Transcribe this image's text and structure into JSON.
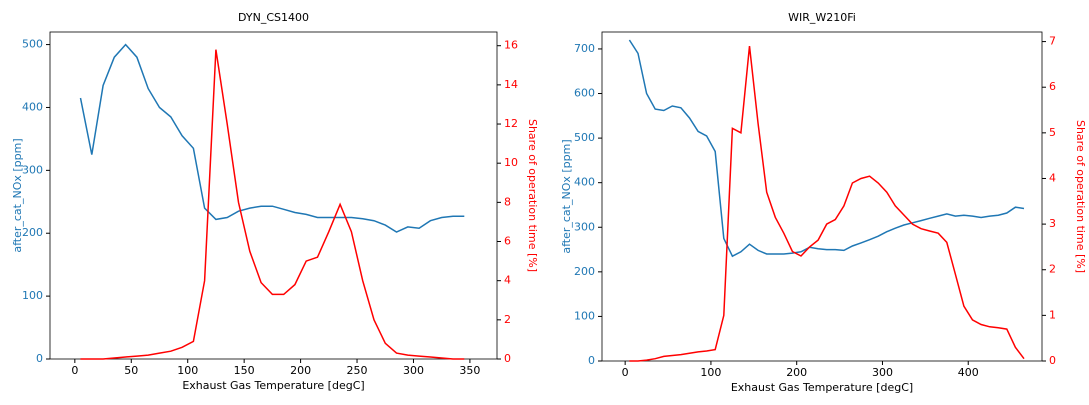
{
  "chart_data": [
    {
      "type": "line",
      "title": "DYN_CS1400",
      "xlabel": "Exhaust Gas Temperature [degC]",
      "ylabel": "after_cat_NOx [ppm]",
      "y2label": "Share of operation time [%]",
      "x": [
        5,
        15,
        25,
        35,
        45,
        55,
        65,
        75,
        85,
        95,
        105,
        115,
        125,
        135,
        145,
        155,
        165,
        175,
        185,
        195,
        205,
        215,
        225,
        235,
        245,
        255,
        265,
        275,
        285,
        295,
        305,
        315,
        325,
        335,
        345
      ],
      "series": [
        {
          "color": "#1f77b4",
          "axis": "y",
          "values": [
            415,
            325,
            435,
            480,
            500,
            480,
            430,
            400,
            385,
            355,
            335,
            240,
            222,
            225,
            235,
            240,
            243,
            243,
            238,
            233,
            230,
            225,
            225,
            225,
            225,
            223,
            220,
            213,
            202,
            210,
            208,
            220,
            225,
            227,
            227
          ]
        },
        {
          "color": "#ff0000",
          "axis": "y2",
          "values": [
            0,
            0,
            0,
            0.05,
            0.1,
            0.15,
            0.2,
            0.3,
            0.4,
            0.6,
            0.9,
            4,
            15.8,
            12,
            8,
            5.5,
            3.9,
            3.3,
            3.3,
            3.8,
            5,
            5.2,
            6.5,
            7.9,
            6.5,
            4,
            2,
            0.8,
            0.3,
            0.2,
            0.15,
            0.1,
            0.05,
            0,
            0
          ]
        }
      ],
      "xlim": [
        -22,
        374
      ],
      "ylim": [
        0,
        520
      ],
      "y2lim": [
        0,
        16.7
      ],
      "xticks": [
        0,
        50,
        100,
        150,
        200,
        250,
        300,
        350
      ],
      "yticks": [
        0,
        100,
        200,
        300,
        400,
        500
      ],
      "y2ticks": [
        0,
        2,
        4,
        6,
        8,
        10,
        12,
        14,
        16
      ]
    },
    {
      "type": "line",
      "title": "WIR_W210Fi",
      "xlabel": "Exhaust Gas Temperature [degC]",
      "ylabel": "after_cat_NOx [ppm]",
      "y2label": "Share of operation time [%]",
      "x": [
        5,
        15,
        25,
        35,
        45,
        55,
        65,
        75,
        85,
        95,
        105,
        115,
        125,
        135,
        145,
        155,
        165,
        175,
        185,
        195,
        205,
        215,
        225,
        235,
        245,
        255,
        265,
        275,
        285,
        295,
        305,
        315,
        325,
        335,
        345,
        355,
        365,
        375,
        385,
        395,
        405,
        415,
        425,
        435,
        445,
        455,
        465
      ],
      "series": [
        {
          "color": "#1f77b4",
          "axis": "y",
          "values": [
            720,
            690,
            600,
            565,
            562,
            572,
            568,
            545,
            515,
            505,
            470,
            275,
            235,
            245,
            262,
            248,
            240,
            240,
            240,
            242,
            245,
            255,
            252,
            250,
            250,
            248,
            258,
            265,
            272,
            280,
            290,
            298,
            305,
            310,
            315,
            320,
            325,
            330,
            325,
            327,
            325,
            322,
            325,
            327,
            332,
            345,
            342
          ]
        },
        {
          "color": "#ff0000",
          "axis": "y2",
          "values": [
            0,
            0,
            0.02,
            0.05,
            0.1,
            0.12,
            0.14,
            0.17,
            0.2,
            0.22,
            0.25,
            1,
            5.1,
            5,
            6.9,
            5.2,
            3.7,
            3.15,
            2.8,
            2.4,
            2.3,
            2.5,
            2.65,
            3,
            3.1,
            3.4,
            3.9,
            4,
            4.05,
            3.9,
            3.7,
            3.4,
            3.2,
            3,
            2.9,
            2.85,
            2.8,
            2.6,
            1.9,
            1.2,
            0.9,
            0.8,
            0.75,
            0.73,
            0.7,
            0.3,
            0.05
          ]
        }
      ],
      "xlim": [
        -27,
        486
      ],
      "ylim": [
        0,
        738
      ],
      "y2lim": [
        0,
        7.21
      ],
      "xticks": [
        0,
        100,
        200,
        300,
        400
      ],
      "yticks": [
        0,
        100,
        200,
        300,
        400,
        500,
        600,
        700
      ],
      "y2ticks": [
        0,
        1,
        2,
        3,
        4,
        5,
        6,
        7
      ]
    }
  ]
}
